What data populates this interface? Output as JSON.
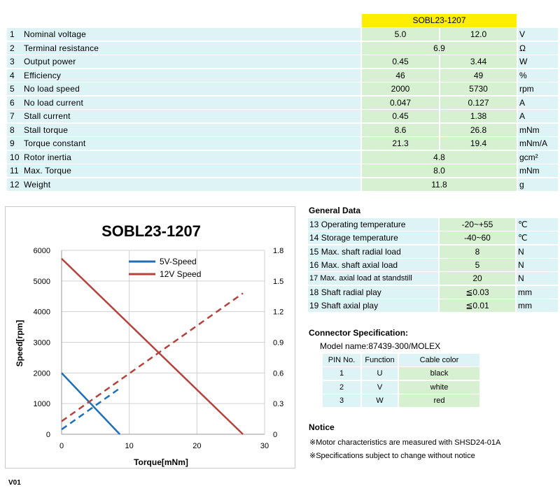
{
  "spec": {
    "model": "SOBL23-1207",
    "rows": [
      {
        "no": "1",
        "label": "Nominal voltage",
        "v1": "5.0",
        "v2": "12.0",
        "unit": "V"
      },
      {
        "no": "2",
        "label": "Terminal resistance",
        "merged": "6.9",
        "unit": "Ω"
      },
      {
        "no": "3",
        "label": "Output power",
        "v1": "0.45",
        "v2": "3.44",
        "unit": "W"
      },
      {
        "no": "4",
        "label": "Efficiency",
        "v1": "46",
        "v2": "49",
        "unit": "%"
      },
      {
        "no": "5",
        "label": "No load speed",
        "v1": "2000",
        "v2": "5730",
        "unit": "rpm"
      },
      {
        "no": "6",
        "label": "No load current",
        "v1": "0.047",
        "v2": "0.127",
        "unit": "A"
      },
      {
        "no": "7",
        "label": "Stall current",
        "v1": "0.45",
        "v2": "1.38",
        "unit": "A"
      },
      {
        "no": "8",
        "label": "Stall torque",
        "v1": "8.6",
        "v2": "26.8",
        "unit": "mNm"
      },
      {
        "no": "9",
        "label": "Torque constant",
        "v1": "21.3",
        "v2": "19.4",
        "unit": "mNm/A"
      },
      {
        "no": "10",
        "label": "Rotor inertia",
        "merged": "4.8",
        "unit": "gcm²"
      },
      {
        "no": "11",
        "label": "Max. Torque",
        "merged": "8.0",
        "unit": "mNm"
      },
      {
        "no": "12",
        "label": "Weight",
        "merged": "11.8",
        "unit": "g"
      }
    ]
  },
  "general": {
    "title": "General Data",
    "rows": [
      {
        "no": "13",
        "label": "Operating temperature",
        "value": "-20~+55",
        "unit": "℃"
      },
      {
        "no": "14",
        "label": "Storage temperature",
        "value": "-40~60",
        "unit": "℃"
      },
      {
        "no": "15",
        "label": "Max. shaft radial load",
        "value": "8",
        "unit": "N"
      },
      {
        "no": "16",
        "label": "Max. shaft axial load",
        "value": "5",
        "unit": "N"
      },
      {
        "no": "17",
        "label": "Max. axial load at standstill",
        "value": "20",
        "unit": "N"
      },
      {
        "no": "18",
        "label": "Shaft radial play",
        "value": "≦0.03",
        "unit": "mm"
      },
      {
        "no": "19",
        "label": "Shaft axial play",
        "value": "≦0.01",
        "unit": "mm"
      }
    ]
  },
  "connector": {
    "title": "Connector Specification:",
    "model_line": "Model name:87439-300/MOLEX",
    "headers": [
      "PIN No.",
      "Function",
      "Cable color"
    ],
    "rows": [
      [
        "1",
        "U",
        "black"
      ],
      [
        "2",
        "V",
        "white"
      ],
      [
        "3",
        "W",
        "red"
      ]
    ]
  },
  "notice": {
    "title": "Notice",
    "lines": [
      "※Motor characteristics are measured with SHSD24-01A",
      "※Specifications subject to change without notice"
    ]
  },
  "version": "V01",
  "chart_data": {
    "type": "line",
    "title": "SOBL23-1207",
    "xlabel": "Torque[mNm]",
    "ylabel": "Speed[rpm]",
    "xlim": [
      0,
      30
    ],
    "ylim": [
      0,
      6000
    ],
    "y2lim": [
      0,
      1.8
    ],
    "x_ticks": [
      "0",
      "10",
      "20",
      "30"
    ],
    "y_ticks": [
      "0",
      "1000",
      "2000",
      "3000",
      "4000",
      "5000",
      "6000"
    ],
    "y2_ticks": [
      "0",
      "0.3",
      "0.6",
      "0.9",
      "1.2",
      "1.5",
      "1.8"
    ],
    "grid": true,
    "legend_position": "top-center",
    "series": [
      {
        "name": "5V-Speed",
        "axis": "left",
        "style": "solid",
        "color": "#1f6fb8",
        "x": [
          0,
          8.6
        ],
        "y": [
          2000,
          0
        ]
      },
      {
        "name": "12V Speed",
        "axis": "left",
        "style": "solid",
        "color": "#b5423c",
        "x": [
          0,
          26.8
        ],
        "y": [
          5730,
          0
        ]
      },
      {
        "axis": "right",
        "style": "dashed",
        "color": "#1f6fb8",
        "x": [
          0,
          8.6
        ],
        "y": [
          0.047,
          0.45
        ]
      },
      {
        "axis": "right",
        "style": "dashed",
        "color": "#b5423c",
        "x": [
          0,
          26.8
        ],
        "y": [
          0.127,
          1.38
        ]
      }
    ]
  }
}
